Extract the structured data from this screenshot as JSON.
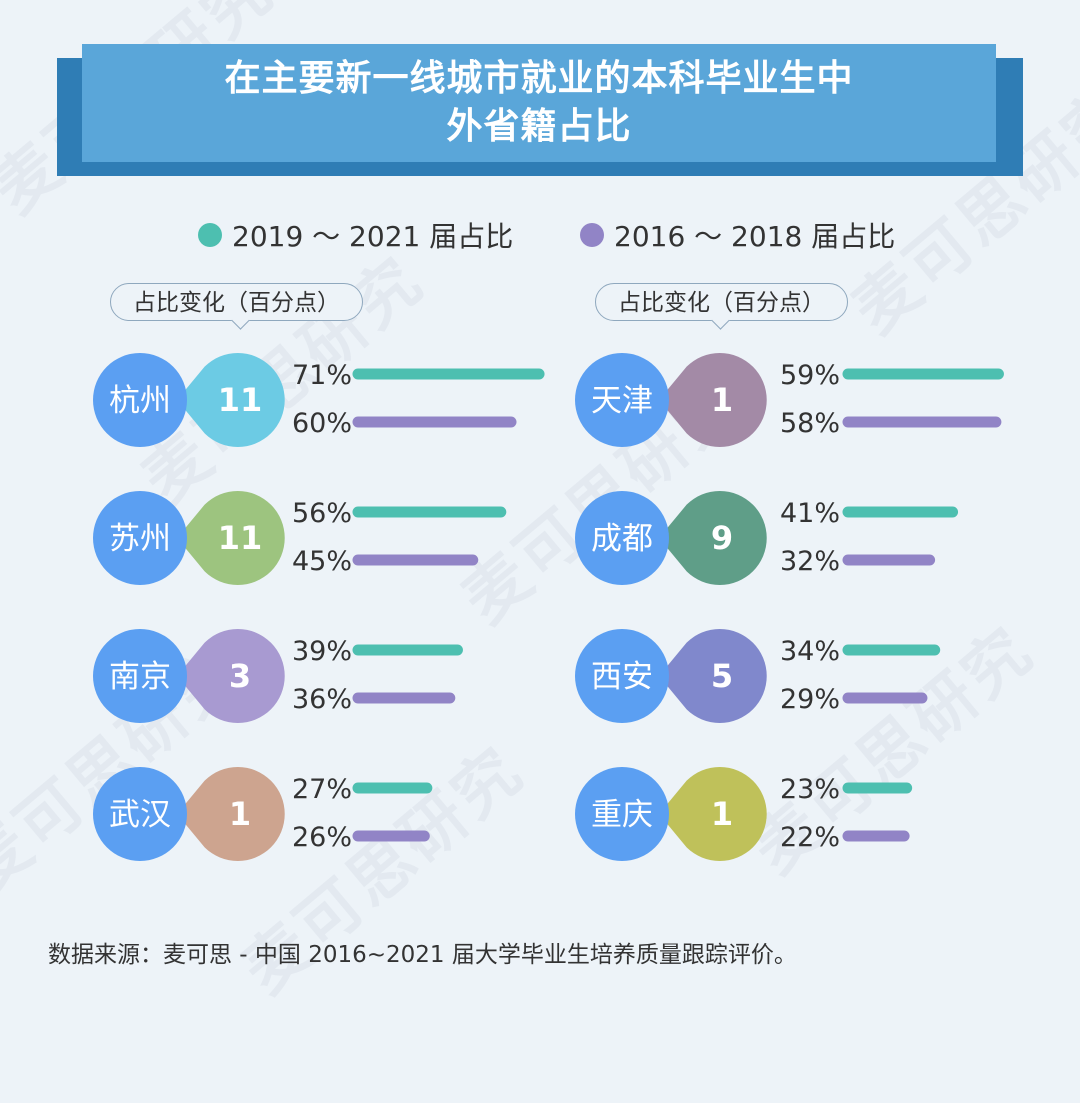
{
  "title": {
    "line1": "在主要新一线城市就业的本科毕业生中",
    "line2": "外省籍占比"
  },
  "legend": {
    "recent": "2019 ～ 2021 届占比",
    "earlier": "2016 ～ 2018 届占比"
  },
  "note": "占比变化（百分点）",
  "source": "数据来源：麦可思 - 中国 2016~2021 届大学毕业生培养质量跟踪评价。",
  "watermark": "麦可思研究",
  "colors": {
    "recent": "#4dbfb0",
    "earlier": "#9184c6",
    "city_circle": "#5b9ff2",
    "banner": "#5aa6d9",
    "banner_shadow": "#2f7db5"
  },
  "chart_data": {
    "type": "bar",
    "title": "在主要新一线城市就业的本科毕业生中外省籍占比",
    "series_names": [
      "2019 ～ 2021 届占比",
      "2016 ～ 2018 届占比"
    ],
    "change_label": "占比变化（百分点）",
    "cities": [
      {
        "name": "杭州",
        "change": "11",
        "recent": 71,
        "earlier": 60,
        "color": "#6ccbe4"
      },
      {
        "name": "苏州",
        "change": "11",
        "recent": 56,
        "earlier": 45,
        "color": "#9dc47f"
      },
      {
        "name": "南京",
        "change": "3",
        "recent": 39,
        "earlier": 36,
        "color": "#a89ad1"
      },
      {
        "name": "武汉",
        "change": "1",
        "recent": 27,
        "earlier": 26,
        "color": "#cda48f"
      },
      {
        "name": "天津",
        "change": "1",
        "recent": 59,
        "earlier": 58,
        "color": "#a38aa6"
      },
      {
        "name": "成都",
        "change": "9",
        "recent": 41,
        "earlier": 32,
        "color": "#5f9e88"
      },
      {
        "name": "西安",
        "change": "5",
        "recent": 34,
        "earlier": 29,
        "color": "#8088cc"
      },
      {
        "name": "重庆",
        "change": "1",
        "recent": 23,
        "earlier": 22,
        "color": "#bfc15a"
      }
    ],
    "unit": "%"
  }
}
